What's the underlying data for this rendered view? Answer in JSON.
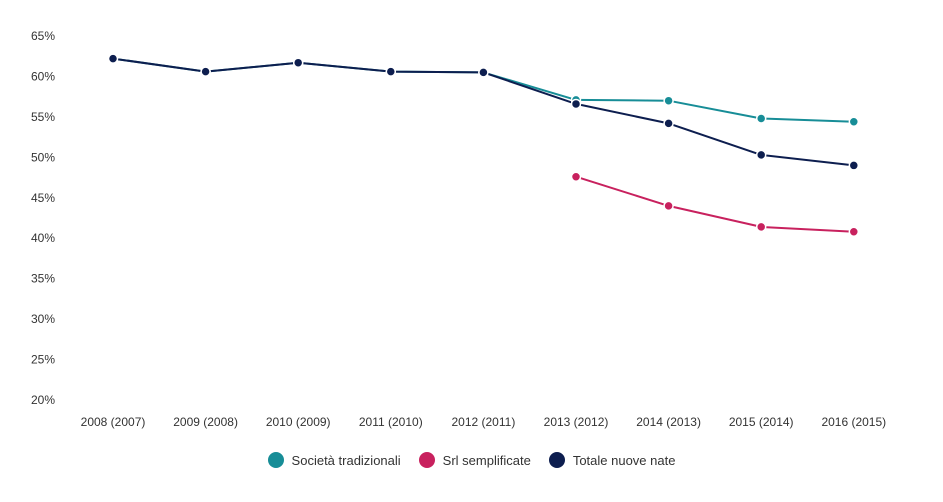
{
  "chart_data": {
    "type": "line",
    "categories": [
      "2008 (2007)",
      "2009 (2008)",
      "2010 (2009)",
      "2011 (2010)",
      "2012 (2011)",
      "2013 (2012)",
      "2014 (2013)",
      "2015 (2014)",
      "2016 (2015)"
    ],
    "y_ticks": [
      "20%",
      "25%",
      "30%",
      "35%",
      "40%",
      "45%",
      "50%",
      "55%",
      "60%",
      "65%"
    ],
    "ylim": [
      20,
      65
    ],
    "y_unit": "%",
    "grid": false,
    "legend_position": "bottom",
    "series": [
      {
        "name": "Società tradizionali",
        "color": "#178d97",
        "values": [
          62.2,
          60.6,
          61.7,
          60.6,
          60.5,
          57.1,
          57.0,
          54.8,
          54.4
        ]
      },
      {
        "name": "Srl semplificate",
        "color": "#c8215e",
        "values": [
          null,
          null,
          null,
          null,
          null,
          47.6,
          44.0,
          41.4,
          40.8
        ]
      },
      {
        "name": "Totale nuove nate",
        "color": "#0d1e4f",
        "values": [
          62.2,
          60.6,
          61.7,
          60.6,
          60.5,
          56.6,
          54.2,
          50.3,
          49.0
        ]
      }
    ]
  }
}
